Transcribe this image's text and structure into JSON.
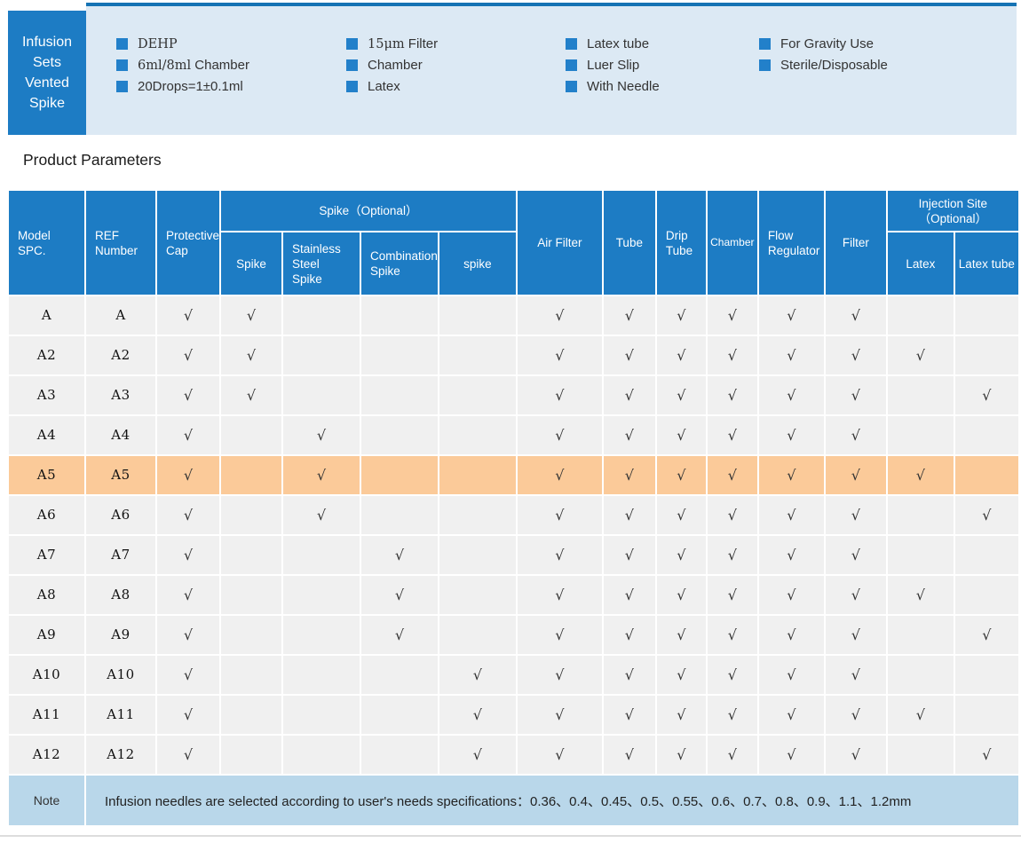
{
  "banner": {
    "title": "Infusion\nSets\nVented\nSpike",
    "feature_columns": [
      {
        "items": [
          [
            {
              "text": "DEHP",
              "font": "serif"
            }
          ],
          [
            {
              "text": "6ml/8ml",
              "font": "serif"
            },
            {
              "text": " Chamber",
              "font": "sans"
            }
          ],
          [
            {
              "text": "20Drops=1±0.1ml",
              "font": "sans"
            }
          ]
        ]
      },
      {
        "items": [
          [
            {
              "text": "15μm",
              "font": "serif"
            },
            {
              "text": " Filter",
              "font": "sans"
            }
          ],
          [
            {
              "text": "Chamber",
              "font": "sans"
            }
          ],
          [
            {
              "text": "Latex",
              "font": "sans"
            }
          ]
        ]
      },
      {
        "items": [
          [
            {
              "text": "Latex tube",
              "font": "sans"
            }
          ],
          [
            {
              "text": "Luer Slip",
              "font": "sans"
            }
          ],
          [
            {
              "text": "With Needle",
              "font": "sans"
            }
          ]
        ]
      },
      {
        "items": [
          [
            {
              "text": "For Gravity Use",
              "font": "sans"
            }
          ],
          [
            {
              "text": "Sterile/Disposable",
              "font": "sans"
            }
          ]
        ]
      }
    ]
  },
  "section_title": "Product Parameters",
  "table": {
    "check_symbol": "√",
    "header": {
      "model": "Model\nSPC.",
      "ref": "REF\nNumber",
      "protective_cap": "Protective\nCap",
      "spike_group": "Spike（Optional）",
      "spike": "Spike",
      "stainless_steel_spike": "Stainless\nSteel\nSpike",
      "combination_spike": "Combination\nSpike",
      "spike2": "spike",
      "air_filter": "Air Filter",
      "tube": "Tube",
      "drip_tube": "Drip\nTube",
      "chamber": "Chamber",
      "flow_regulator": "Flow\nRegulator",
      "filter": "Filter",
      "injection_site_group": "Injection Site\n（Optional）",
      "latex": "Latex",
      "latex_tube": "Latex tube"
    },
    "cell_keys": [
      "protective_cap",
      "spike",
      "stainless_steel_spike",
      "combination_spike",
      "spike2",
      "air_filter",
      "tube",
      "drip_tube",
      "chamber",
      "flow_regulator",
      "filter",
      "latex",
      "latex_tube"
    ],
    "rows": [
      {
        "model": "A",
        "ref": "A",
        "highlight": false,
        "cells": [
          1,
          1,
          0,
          0,
          0,
          1,
          1,
          1,
          1,
          1,
          1,
          0,
          0
        ]
      },
      {
        "model": "A2",
        "ref": "A2",
        "highlight": false,
        "cells": [
          1,
          1,
          0,
          0,
          0,
          1,
          1,
          1,
          1,
          1,
          1,
          1,
          0
        ]
      },
      {
        "model": "A3",
        "ref": "A3",
        "highlight": false,
        "cells": [
          1,
          1,
          0,
          0,
          0,
          1,
          1,
          1,
          1,
          1,
          1,
          0,
          1
        ]
      },
      {
        "model": "A4",
        "ref": "A4",
        "highlight": false,
        "cells": [
          1,
          0,
          1,
          0,
          0,
          1,
          1,
          1,
          1,
          1,
          1,
          0,
          0
        ]
      },
      {
        "model": "A5",
        "ref": "A5",
        "highlight": true,
        "cells": [
          1,
          0,
          1,
          0,
          0,
          1,
          1,
          1,
          1,
          1,
          1,
          1,
          0
        ]
      },
      {
        "model": "A6",
        "ref": "A6",
        "highlight": false,
        "cells": [
          1,
          0,
          1,
          0,
          0,
          1,
          1,
          1,
          1,
          1,
          1,
          0,
          1
        ]
      },
      {
        "model": "A7",
        "ref": "A7",
        "highlight": false,
        "cells": [
          1,
          0,
          0,
          1,
          0,
          1,
          1,
          1,
          1,
          1,
          1,
          0,
          0
        ]
      },
      {
        "model": "A8",
        "ref": "A8",
        "highlight": false,
        "cells": [
          1,
          0,
          0,
          1,
          0,
          1,
          1,
          1,
          1,
          1,
          1,
          1,
          0
        ]
      },
      {
        "model": "A9",
        "ref": "A9",
        "highlight": false,
        "cells": [
          1,
          0,
          0,
          1,
          0,
          1,
          1,
          1,
          1,
          1,
          1,
          0,
          1
        ]
      },
      {
        "model": "A10",
        "ref": "A10",
        "highlight": false,
        "cells": [
          1,
          0,
          0,
          0,
          1,
          1,
          1,
          1,
          1,
          1,
          1,
          0,
          0
        ]
      },
      {
        "model": "A11",
        "ref": "A11",
        "highlight": false,
        "cells": [
          1,
          0,
          0,
          0,
          1,
          1,
          1,
          1,
          1,
          1,
          1,
          1,
          0
        ]
      },
      {
        "model": "A12",
        "ref": "A12",
        "highlight": false,
        "cells": [
          1,
          0,
          0,
          0,
          1,
          1,
          1,
          1,
          1,
          1,
          1,
          0,
          1
        ]
      }
    ],
    "note": {
      "label": "Note",
      "text": "Infusion needles are selected according to user's needs specifications：0.36、0.4、0.45、0.5、0.55、0.6、0.7、0.8、0.9、1.1、1.2mm"
    }
  },
  "colors": {
    "header_blue": "#1d7cc4",
    "panel_light_blue": "#dce9f4",
    "panel_border_blue": "#1573b4",
    "bullet_blue": "#2280ca",
    "body_row_gray": "#f0f0f0",
    "highlight_orange": "#fbca99",
    "note_blue": "#b9d7ea",
    "check_color": "#333333"
  }
}
